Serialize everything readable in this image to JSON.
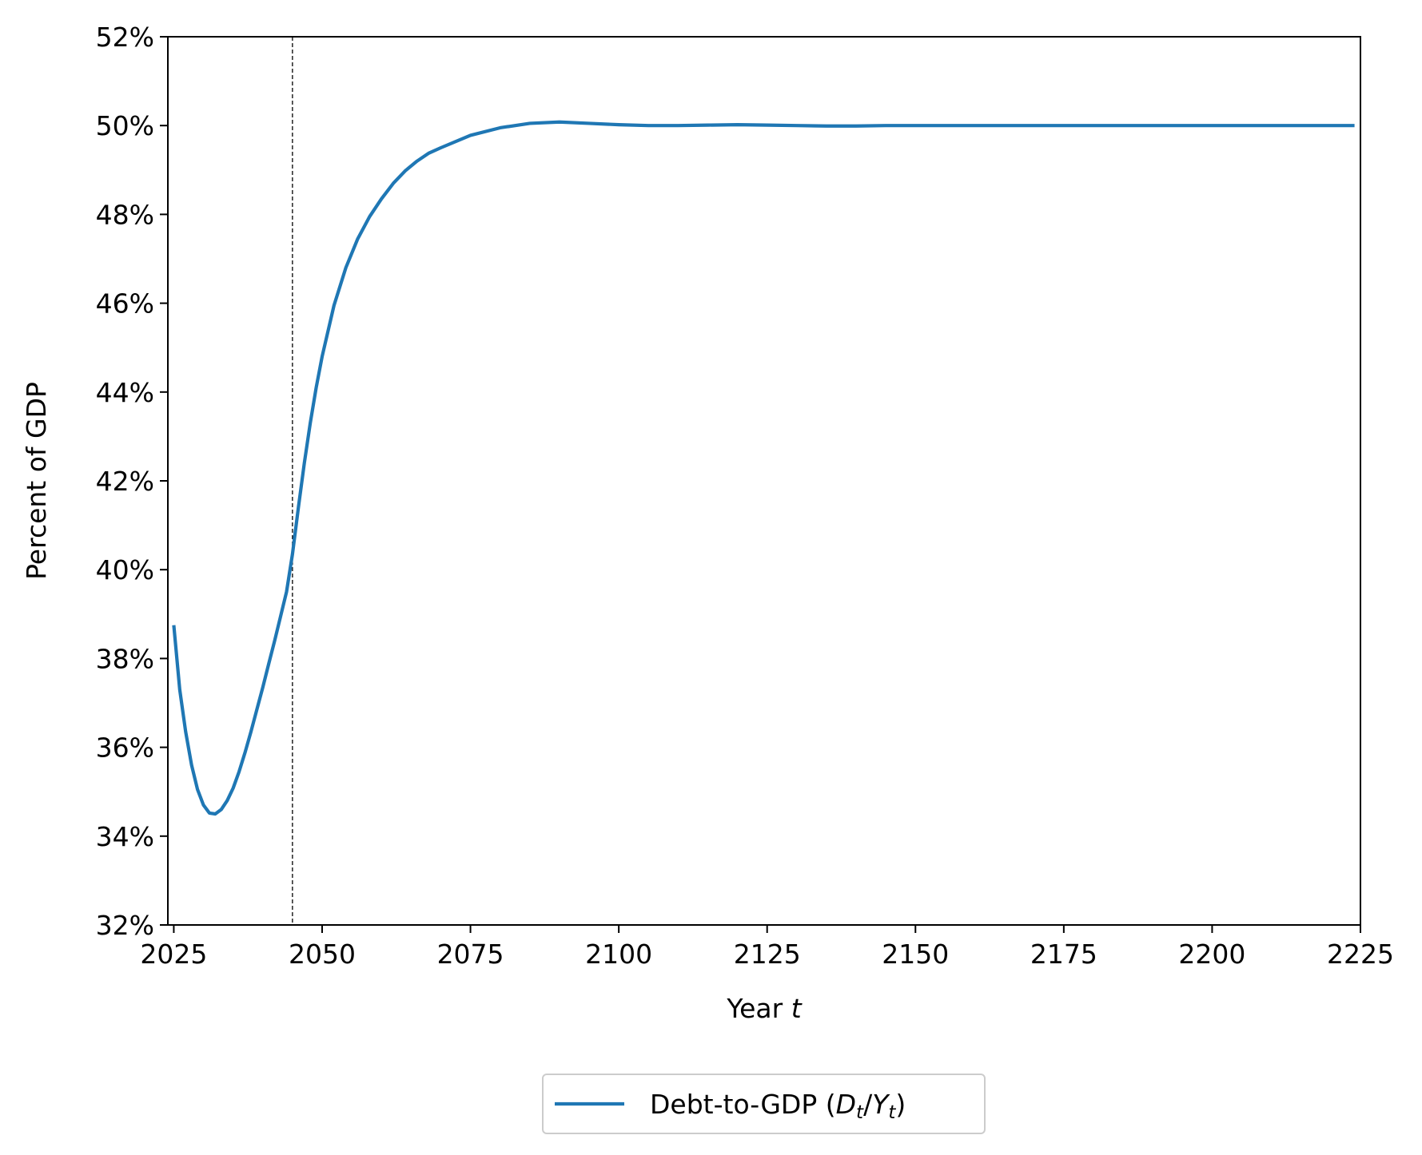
{
  "chart_data": {
    "type": "line",
    "title": "",
    "xlabel": "Year",
    "xlabel_var": "t",
    "ylabel": "Percent of GDP",
    "xlim": [
      2024,
      2225
    ],
    "ylim": [
      32,
      52
    ],
    "x_ticks": [
      2025,
      2050,
      2075,
      2100,
      2125,
      2150,
      2175,
      2200,
      2225
    ],
    "y_ticks": [
      32,
      34,
      36,
      38,
      40,
      42,
      44,
      46,
      48,
      50,
      52
    ],
    "y_tick_labels": [
      "32%",
      "34%",
      "36%",
      "38%",
      "40%",
      "42%",
      "44%",
      "46%",
      "48%",
      "50%",
      "52%"
    ],
    "vertical_line": {
      "x": 2045,
      "style": "dashed",
      "color": "#000000"
    },
    "grid": false,
    "legend": {
      "placement": "bottom-center, below axes"
    },
    "series": [
      {
        "name": "Debt-to-GDP (D_t/Y_t)",
        "legend_prefix": "Debt-to-GDP (",
        "legend_D": "D",
        "legend_Y": "Y",
        "legend_sub": "t",
        "color": "#1f77b4",
        "x": [
          2025,
          2026,
          2027,
          2028,
          2029,
          2030,
          2031,
          2032,
          2033,
          2034,
          2035,
          2036,
          2037,
          2038,
          2039,
          2040,
          2041,
          2042,
          2043,
          2044,
          2045,
          2046,
          2047,
          2048,
          2049,
          2050,
          2052,
          2054,
          2056,
          2058,
          2060,
          2062,
          2064,
          2066,
          2068,
          2070,
          2075,
          2080,
          2085,
          2090,
          2095,
          2100,
          2105,
          2110,
          2115,
          2120,
          2125,
          2130,
          2135,
          2140,
          2145,
          2150,
          2160,
          2170,
          2180,
          2190,
          2200,
          2210,
          2220,
          2224
        ],
        "y": [
          38.75,
          37.3,
          36.35,
          35.6,
          35.05,
          34.7,
          34.52,
          34.5,
          34.6,
          34.8,
          35.08,
          35.45,
          35.88,
          36.35,
          36.85,
          37.35,
          37.88,
          38.4,
          38.95,
          39.5,
          40.35,
          41.4,
          42.4,
          43.3,
          44.1,
          44.8,
          45.95,
          46.8,
          47.45,
          47.95,
          48.35,
          48.7,
          48.98,
          49.2,
          49.38,
          49.5,
          49.78,
          49.95,
          50.05,
          50.08,
          50.05,
          50.02,
          50.0,
          50.0,
          50.01,
          50.02,
          50.01,
          50.0,
          49.99,
          49.99,
          50.0,
          50.0,
          50.0,
          50.0,
          50.0,
          50.0,
          50.0,
          50.0,
          50.0,
          50.0
        ]
      }
    ]
  }
}
